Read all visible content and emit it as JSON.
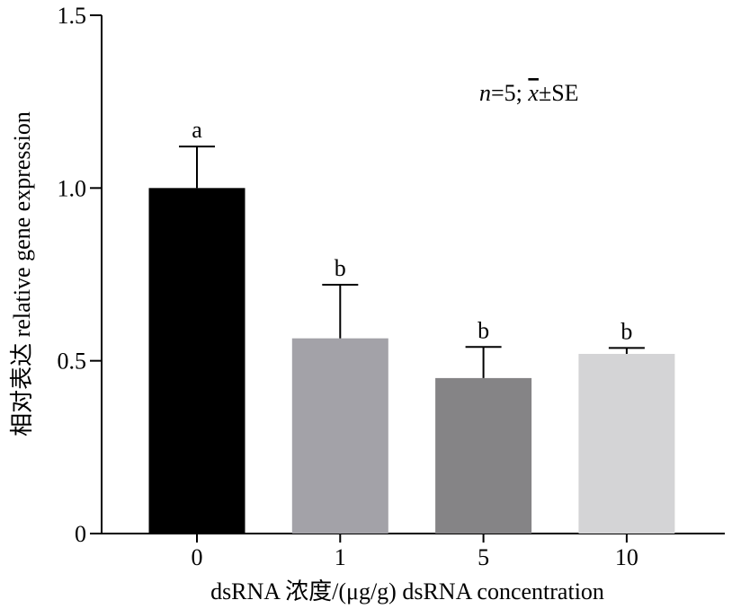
{
  "chart_data": {
    "type": "bar",
    "categories": [
      "0",
      "1",
      "5",
      "10"
    ],
    "values": [
      1.0,
      0.565,
      0.45,
      0.52
    ],
    "errors": [
      0.12,
      0.155,
      0.09,
      0.017
    ],
    "significance": [
      "a",
      "b",
      "b",
      "b"
    ],
    "bar_colors": [
      "#000000",
      "#a3a2a8",
      "#858486",
      "#d4d4d6"
    ],
    "title": "",
    "xlabel": "dsRNA 浓度/(μg/g) dsRNA concentration",
    "ylabel": "相对表达 relative gene expression",
    "ylim": [
      0,
      1.5
    ],
    "yticks": [
      0,
      0.5,
      1.0,
      1.5
    ],
    "ytick_labels": [
      "0",
      "0.5",
      "1.0",
      "1.5"
    ],
    "annotation": {
      "n_label": "n",
      "n_value": "=5; ",
      "mean_symbol": "x",
      "pm_se": "±SE"
    },
    "grid": false,
    "legend": "none"
  }
}
